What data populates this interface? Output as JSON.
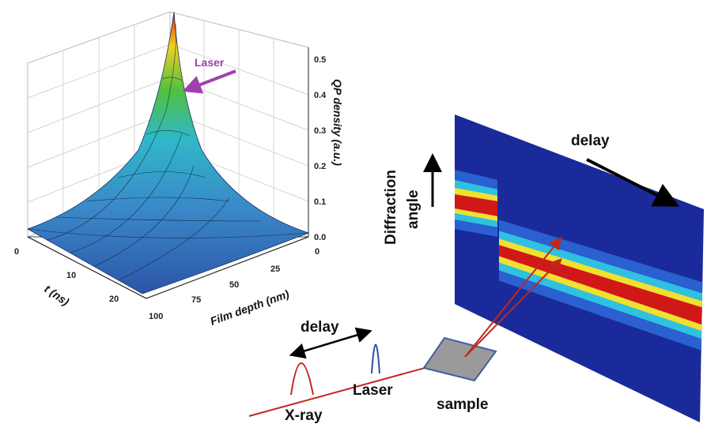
{
  "surface_plot": {
    "annotation": "Laser",
    "z_axis": {
      "label": "QP density (a.u.)",
      "ticks": [
        "0.0",
        "0.1",
        "0.2",
        "0.3",
        "0.4",
        "0.5"
      ]
    },
    "t_axis": {
      "label": "t (ns)",
      "ticks": [
        "0",
        "10",
        "20"
      ]
    },
    "depth_axis": {
      "label": "Film depth (nm)",
      "ticks": [
        "100",
        "75",
        "50",
        "25",
        "0"
      ]
    }
  },
  "setup": {
    "detector_delay": "delay",
    "detector_axis": [
      "Diffraction",
      "angle"
    ],
    "pulse_delay": "delay",
    "xray": "X-ray",
    "laser": "Laser",
    "sample": "sample"
  }
}
